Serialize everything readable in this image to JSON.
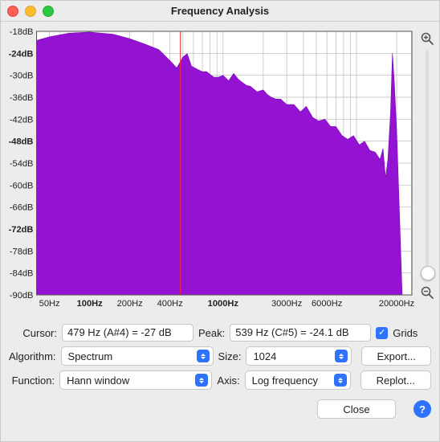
{
  "window": {
    "title": "Frequency Analysis"
  },
  "chart": {
    "type": "area",
    "background_color": "#ffffff",
    "grid_color": "#b9b9b9",
    "series_fill": "#9412d1",
    "series_stroke": "#7a0eb0",
    "cursor_line_color": "#ff2a2a",
    "cursor_freq_hz": 479,
    "x_axis": {
      "scale": "log",
      "min_hz": 40,
      "max_hz": 26000,
      "ticks": [
        {
          "hz": 50,
          "label": "50Hz",
          "bold": false,
          "show_label": true
        },
        {
          "hz": 60,
          "label": "",
          "bold": false,
          "show_label": false
        },
        {
          "hz": 70,
          "label": "",
          "bold": false,
          "show_label": false
        },
        {
          "hz": 80,
          "label": "",
          "bold": false,
          "show_label": false
        },
        {
          "hz": 90,
          "label": "",
          "bold": false,
          "show_label": false
        },
        {
          "hz": 100,
          "label": "100Hz",
          "bold": true,
          "show_label": true
        },
        {
          "hz": 200,
          "label": "200Hz",
          "bold": false,
          "show_label": true
        },
        {
          "hz": 300,
          "label": "",
          "bold": false,
          "show_label": false
        },
        {
          "hz": 400,
          "label": "400Hz",
          "bold": false,
          "show_label": true
        },
        {
          "hz": 500,
          "label": "",
          "bold": false,
          "show_label": false
        },
        {
          "hz": 600,
          "label": "",
          "bold": false,
          "show_label": false
        },
        {
          "hz": 700,
          "label": "",
          "bold": false,
          "show_label": false
        },
        {
          "hz": 800,
          "label": "",
          "bold": false,
          "show_label": false
        },
        {
          "hz": 900,
          "label": "",
          "bold": false,
          "show_label": false
        },
        {
          "hz": 1000,
          "label": "1000Hz",
          "bold": true,
          "show_label": true
        },
        {
          "hz": 2000,
          "label": "",
          "bold": false,
          "show_label": false
        },
        {
          "hz": 3000,
          "label": "3000Hz",
          "bold": false,
          "show_label": true
        },
        {
          "hz": 4000,
          "label": "",
          "bold": false,
          "show_label": false
        },
        {
          "hz": 5000,
          "label": "",
          "bold": false,
          "show_label": false
        },
        {
          "hz": 6000,
          "label": "6000Hz",
          "bold": false,
          "show_label": true
        },
        {
          "hz": 7000,
          "label": "",
          "bold": false,
          "show_label": false
        },
        {
          "hz": 8000,
          "label": "",
          "bold": false,
          "show_label": false
        },
        {
          "hz": 9000,
          "label": "",
          "bold": false,
          "show_label": false
        },
        {
          "hz": 10000,
          "label": "",
          "bold": true,
          "show_label": false
        },
        {
          "hz": 20000,
          "label": "20000Hz",
          "bold": false,
          "show_label": true
        }
      ]
    },
    "y_axis": {
      "min_db": -90,
      "max_db": -18,
      "tick_step_db": 6,
      "bold_ticks_db": [
        -24,
        -48,
        -72
      ],
      "label_suffix": "dB"
    },
    "series_points": [
      {
        "hz": 40,
        "db": -20.5
      },
      {
        "hz": 50,
        "db": -19.5
      },
      {
        "hz": 70,
        "db": -18.5
      },
      {
        "hz": 100,
        "db": -18.2
      },
      {
        "hz": 150,
        "db": -18.8
      },
      {
        "hz": 200,
        "db": -20.0
      },
      {
        "hz": 260,
        "db": -21.5
      },
      {
        "hz": 330,
        "db": -23.0
      },
      {
        "hz": 400,
        "db": -26.0
      },
      {
        "hz": 450,
        "db": -28.0
      },
      {
        "hz": 500,
        "db": -25.0
      },
      {
        "hz": 539,
        "db": -24.1
      },
      {
        "hz": 580,
        "db": -27.5
      },
      {
        "hz": 650,
        "db": -28.5
      },
      {
        "hz": 750,
        "db": -29.0
      },
      {
        "hz": 850,
        "db": -30.5
      },
      {
        "hz": 1000,
        "db": -30.0
      },
      {
        "hz": 1100,
        "db": -31.5
      },
      {
        "hz": 1200,
        "db": -29.5
      },
      {
        "hz": 1400,
        "db": -32.0
      },
      {
        "hz": 1600,
        "db": -33.0
      },
      {
        "hz": 1800,
        "db": -34.5
      },
      {
        "hz": 2000,
        "db": -34.0
      },
      {
        "hz": 2300,
        "db": -36.0
      },
      {
        "hz": 2700,
        "db": -36.5
      },
      {
        "hz": 3000,
        "db": -38.0
      },
      {
        "hz": 3400,
        "db": -38.0
      },
      {
        "hz": 3800,
        "db": -40.0
      },
      {
        "hz": 4200,
        "db": -38.5
      },
      {
        "hz": 4700,
        "db": -41.5
      },
      {
        "hz": 5200,
        "db": -42.5
      },
      {
        "hz": 5800,
        "db": -42.0
      },
      {
        "hz": 6400,
        "db": -44.0
      },
      {
        "hz": 7000,
        "db": -44.0
      },
      {
        "hz": 7800,
        "db": -46.5
      },
      {
        "hz": 8600,
        "db": -47.5
      },
      {
        "hz": 9500,
        "db": -46.5
      },
      {
        "hz": 10500,
        "db": -49.0
      },
      {
        "hz": 11500,
        "db": -48.0
      },
      {
        "hz": 12600,
        "db": -50.5
      },
      {
        "hz": 13800,
        "db": -51.0
      },
      {
        "hz": 15000,
        "db": -53.0
      },
      {
        "hz": 15800,
        "db": -50.0
      },
      {
        "hz": 16500,
        "db": -58.0
      },
      {
        "hz": 17200,
        "db": -53.0
      },
      {
        "hz": 18000,
        "db": -40.0
      },
      {
        "hz": 18600,
        "db": -24.0
      },
      {
        "hz": 19200,
        "db": -32.0
      },
      {
        "hz": 20000,
        "db": -45.0
      },
      {
        "hz": 21000,
        "db": -68.0
      },
      {
        "hz": 22000,
        "db": -90.0
      }
    ]
  },
  "readouts": {
    "cursor_label": "Cursor:",
    "cursor_value": "479 Hz (A#4) = -27 dB",
    "peak_label": "Peak:",
    "peak_value": "539 Hz (C#5) = -24.1 dB",
    "grids_label": "Grids"
  },
  "controls": {
    "algorithm_label": "Algorithm:",
    "algorithm_value": "Spectrum",
    "size_label": "Size:",
    "size_value": "1024",
    "function_label": "Function:",
    "function_value": "Hann window",
    "axis_label": "Axis:",
    "axis_value": "Log frequency",
    "export_label": "Export...",
    "replot_label": "Replot...",
    "close_label": "Close"
  },
  "zoom": {
    "slider_pos": 0.0
  }
}
